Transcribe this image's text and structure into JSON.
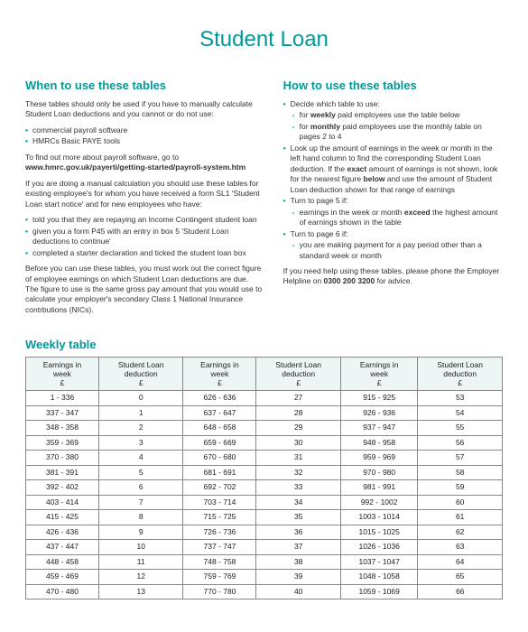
{
  "title": "Student Loan",
  "colors": {
    "accent": "#009999",
    "text": "#333333",
    "border": "#888888",
    "header_bg": "#eef5f5"
  },
  "left": {
    "heading": "When to use these tables",
    "p1": "These tables should only be used if you have to manually calculate Student Loan deductions and you cannot or do not use:",
    "bullets1": [
      "commercial payroll software",
      "HMRCs Basic PAYE tools"
    ],
    "p2_pre": "To find out more about payroll software, go to ",
    "p2_link": "www.hmrc.gov.uk/payerti/getting-started/payroll-system.htm",
    "p3": "If you are doing a manual calculation you should use these tables for existing employee's for whom you have received a form SL1 'Student Loan start notice' and for new employees who have:",
    "bullets2": [
      "told you that they are repaying an Income Contingent student loan",
      "given you a form P45 with an entry in box 5 'Student Loan deductions to continue'",
      "completed a starter declaration and ticked the student loan box"
    ],
    "p4": "Before you can use these tables, you must work out the correct figure of employee earnings on which Student Loan deductions are due. The figure to use is the same gross pay amount that you would use to calculate your employer's secondary Class 1 National Insurance contrbutions (NICs)."
  },
  "right": {
    "heading": "How to use these tables",
    "b1": "Decide which table to use:",
    "b1_sub": [
      "for weekly paid employees use the table below",
      "for monthly paid employees use the monthly table on pages 2 to 4"
    ],
    "b2": "Look up the amount of earnings in the week or month in the left hand column to find the corresponding Student Loan deduction. If the exact amount of earnings is not shown, look for the nearest figure below and use the amount of Student Loan deduction shown for that range of earnings",
    "b3": "Turn to page 5 if:",
    "b3_sub": [
      "earnings in the week or month exceed the highest amount of earnings shown in the table"
    ],
    "b4": "Turn to page 6 if:",
    "b4_sub": [
      "you are making payment for a pay period other than a standard week or month"
    ],
    "p_end_pre": "If you need help using these tables, please phone the Employer Helpline on ",
    "p_end_num": "0300 200 3200",
    "p_end_post": " for advice."
  },
  "table": {
    "heading": "Weekly table",
    "col_earn_l1": "Earnings in",
    "col_earn_l2": "week",
    "col_earn_l3": "£",
    "col_ded_l1": "Student Loan",
    "col_ded_l2": "deduction",
    "col_ded_l3": "£",
    "rows": [
      [
        "1 - 336",
        "0",
        "626 - 636",
        "27",
        "915 - 925",
        "53"
      ],
      [
        "337 - 347",
        "1",
        "637 - 647",
        "28",
        "926 - 936",
        "54"
      ],
      [
        "348 - 358",
        "2",
        "648 - 658",
        "29",
        "937 - 947",
        "55"
      ],
      [
        "359 - 369",
        "3",
        "659 - 669",
        "30",
        "948 - 958",
        "56"
      ],
      [
        "370 - 380",
        "4",
        "670 - 680",
        "31",
        "959 - 969",
        "57"
      ],
      [
        "381 - 391",
        "5",
        "681 - 691",
        "32",
        "970 - 980",
        "58"
      ],
      [
        "392 - 402",
        "6",
        "692 - 702",
        "33",
        "981 - 991",
        "59"
      ],
      [
        "403 - 414",
        "7",
        "703 - 714",
        "34",
        "992 - 1002",
        "60"
      ],
      [
        "415 - 425",
        "8",
        "715 - 725",
        "35",
        "1003 - 1014",
        "61"
      ],
      [
        "426 - 436",
        "9",
        "726 - 736",
        "36",
        "1015 - 1025",
        "62"
      ],
      [
        "437 - 447",
        "10",
        "737 - 747",
        "37",
        "1026 - 1036",
        "63"
      ],
      [
        "448 - 458",
        "11",
        "748 - 758",
        "38",
        "1037 - 1047",
        "64"
      ],
      [
        "459 - 469",
        "12",
        "759 - 769",
        "39",
        "1048 - 1058",
        "65"
      ],
      [
        "470 - 480",
        "13",
        "770 - 780",
        "40",
        "1059 - 1069",
        "66"
      ]
    ]
  }
}
